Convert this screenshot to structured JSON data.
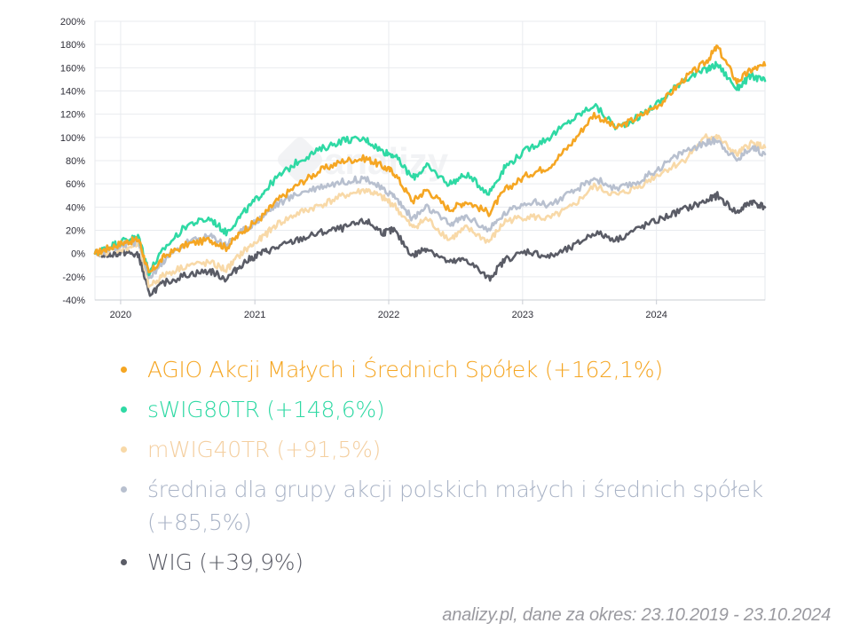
{
  "chart_data": {
    "type": "line",
    "x_range": [
      "2019-10-23",
      "2024-10-23"
    ],
    "x_ticks": [
      "2020",
      "2021",
      "2022",
      "2023",
      "2024"
    ],
    "y_ticks": [
      "200%",
      "180%",
      "160%",
      "140%",
      "120%",
      "100%",
      "80%",
      "60%",
      "40%",
      "20%",
      "0%",
      "-20%",
      "-40%"
    ],
    "ylim": [
      -40,
      200
    ],
    "grid": true,
    "watermark": "analizy",
    "series": [
      {
        "name": "AGIO Akcji Małych i Średnich Spółek",
        "legend_label": "AGIO Akcji Małych i Średnich Spółek (+162,1%)",
        "color": "#f5a623",
        "values": [
          [
            "2019-10-23",
            0
          ],
          [
            "2019-12-01",
            5
          ],
          [
            "2020-01-15",
            10
          ],
          [
            "2020-02-20",
            12
          ],
          [
            "2020-03-18",
            -18
          ],
          [
            "2020-05-01",
            -2
          ],
          [
            "2020-07-01",
            8
          ],
          [
            "2020-09-01",
            12
          ],
          [
            "2020-10-15",
            5
          ],
          [
            "2020-12-01",
            20
          ],
          [
            "2021-01-15",
            30
          ],
          [
            "2021-03-01",
            45
          ],
          [
            "2021-05-01",
            60
          ],
          [
            "2021-07-01",
            72
          ],
          [
            "2021-09-01",
            80
          ],
          [
            "2021-11-01",
            82
          ],
          [
            "2021-12-15",
            75
          ],
          [
            "2022-01-15",
            70
          ],
          [
            "2022-03-07",
            45
          ],
          [
            "2022-04-15",
            55
          ],
          [
            "2022-06-15",
            38
          ],
          [
            "2022-08-01",
            45
          ],
          [
            "2022-10-01",
            35
          ],
          [
            "2022-11-15",
            55
          ],
          [
            "2023-01-15",
            68
          ],
          [
            "2023-03-15",
            75
          ],
          [
            "2023-05-15",
            95
          ],
          [
            "2023-07-15",
            120
          ],
          [
            "2023-09-15",
            108
          ],
          [
            "2023-11-15",
            118
          ],
          [
            "2024-01-15",
            130
          ],
          [
            "2024-03-15",
            150
          ],
          [
            "2024-05-15",
            165
          ],
          [
            "2024-06-15",
            178
          ],
          [
            "2024-08-07",
            148
          ],
          [
            "2024-09-15",
            158
          ],
          [
            "2024-10-23",
            162.1
          ]
        ]
      },
      {
        "name": "sWIG80TR",
        "legend_label": "sWIG80TR (+148,6%)",
        "color": "#2fd9a4",
        "values": [
          [
            "2019-10-23",
            0
          ],
          [
            "2019-12-01",
            6
          ],
          [
            "2020-01-15",
            12
          ],
          [
            "2020-02-20",
            14
          ],
          [
            "2020-03-18",
            -16
          ],
          [
            "2020-05-01",
            5
          ],
          [
            "2020-07-01",
            25
          ],
          [
            "2020-09-01",
            30
          ],
          [
            "2020-10-15",
            18
          ],
          [
            "2020-12-01",
            35
          ],
          [
            "2021-01-15",
            50
          ],
          [
            "2021-03-01",
            65
          ],
          [
            "2021-05-01",
            80
          ],
          [
            "2021-07-01",
            90
          ],
          [
            "2021-09-01",
            98
          ],
          [
            "2021-11-01",
            98
          ],
          [
            "2021-12-15",
            88
          ],
          [
            "2022-01-15",
            85
          ],
          [
            "2022-03-07",
            65
          ],
          [
            "2022-04-15",
            75
          ],
          [
            "2022-06-15",
            60
          ],
          [
            "2022-08-01",
            68
          ],
          [
            "2022-10-01",
            52
          ],
          [
            "2022-11-15",
            75
          ],
          [
            "2023-01-15",
            90
          ],
          [
            "2023-03-15",
            100
          ],
          [
            "2023-05-15",
            115
          ],
          [
            "2023-07-15",
            128
          ],
          [
            "2023-09-15",
            108
          ],
          [
            "2023-11-15",
            118
          ],
          [
            "2024-01-15",
            132
          ],
          [
            "2024-03-15",
            150
          ],
          [
            "2024-05-15",
            158
          ],
          [
            "2024-06-15",
            163
          ],
          [
            "2024-08-07",
            142
          ],
          [
            "2024-09-15",
            153
          ],
          [
            "2024-10-23",
            148.6
          ]
        ]
      },
      {
        "name": "mWIG40TR",
        "legend_label": "mWIG40TR (+91,5%)",
        "color": "#f8d9a8",
        "values": [
          [
            "2019-10-23",
            0
          ],
          [
            "2019-12-01",
            2
          ],
          [
            "2020-01-15",
            5
          ],
          [
            "2020-02-20",
            8
          ],
          [
            "2020-03-18",
            -28
          ],
          [
            "2020-05-01",
            -18
          ],
          [
            "2020-07-01",
            -10
          ],
          [
            "2020-09-01",
            -8
          ],
          [
            "2020-10-15",
            -14
          ],
          [
            "2020-12-01",
            2
          ],
          [
            "2021-01-15",
            12
          ],
          [
            "2021-03-01",
            25
          ],
          [
            "2021-05-01",
            35
          ],
          [
            "2021-07-01",
            42
          ],
          [
            "2021-09-01",
            50
          ],
          [
            "2021-11-01",
            55
          ],
          [
            "2021-12-15",
            48
          ],
          [
            "2022-01-15",
            42
          ],
          [
            "2022-03-07",
            22
          ],
          [
            "2022-04-15",
            30
          ],
          [
            "2022-06-15",
            12
          ],
          [
            "2022-08-01",
            22
          ],
          [
            "2022-10-01",
            10
          ],
          [
            "2022-11-15",
            28
          ],
          [
            "2023-01-15",
            32
          ],
          [
            "2023-03-15",
            30
          ],
          [
            "2023-05-15",
            40
          ],
          [
            "2023-07-15",
            58
          ],
          [
            "2023-09-15",
            50
          ],
          [
            "2023-11-15",
            58
          ],
          [
            "2024-01-15",
            70
          ],
          [
            "2024-03-15",
            80
          ],
          [
            "2024-05-15",
            100
          ],
          [
            "2024-06-15",
            100
          ],
          [
            "2024-08-07",
            85
          ],
          [
            "2024-09-15",
            95
          ],
          [
            "2024-10-23",
            91.5
          ]
        ]
      },
      {
        "name": "średnia dla grupy akcji polskich małych i średnich spółek",
        "legend_label": "średnia dla grupy akcji polskich małych i średnich spółek (+85,5%)",
        "color": "#b8c0cf",
        "values": [
          [
            "2019-10-23",
            0
          ],
          [
            "2019-12-01",
            4
          ],
          [
            "2020-01-15",
            8
          ],
          [
            "2020-02-20",
            10
          ],
          [
            "2020-03-18",
            -22
          ],
          [
            "2020-05-01",
            -5
          ],
          [
            "2020-07-01",
            10
          ],
          [
            "2020-09-01",
            15
          ],
          [
            "2020-10-15",
            8
          ],
          [
            "2020-12-01",
            20
          ],
          [
            "2021-01-15",
            30
          ],
          [
            "2021-03-01",
            42
          ],
          [
            "2021-05-01",
            52
          ],
          [
            "2021-07-01",
            58
          ],
          [
            "2021-09-01",
            62
          ],
          [
            "2021-11-01",
            65
          ],
          [
            "2021-12-15",
            55
          ],
          [
            "2022-01-15",
            50
          ],
          [
            "2022-03-07",
            30
          ],
          [
            "2022-04-15",
            40
          ],
          [
            "2022-06-15",
            25
          ],
          [
            "2022-08-01",
            32
          ],
          [
            "2022-10-01",
            20
          ],
          [
            "2022-11-15",
            35
          ],
          [
            "2023-01-15",
            45
          ],
          [
            "2023-03-15",
            42
          ],
          [
            "2023-05-15",
            52
          ],
          [
            "2023-07-15",
            65
          ],
          [
            "2023-09-15",
            55
          ],
          [
            "2023-11-15",
            62
          ],
          [
            "2024-01-15",
            75
          ],
          [
            "2024-03-15",
            88
          ],
          [
            "2024-05-15",
            95
          ],
          [
            "2024-06-15",
            98
          ],
          [
            "2024-08-07",
            80
          ],
          [
            "2024-09-15",
            92
          ],
          [
            "2024-10-23",
            85.5
          ]
        ]
      },
      {
        "name": "WIG",
        "legend_label": "WIG (+39,9%)",
        "color": "#5a5c66",
        "values": [
          [
            "2019-10-23",
            0
          ],
          [
            "2019-12-01",
            -1
          ],
          [
            "2020-01-15",
            1
          ],
          [
            "2020-02-20",
            -2
          ],
          [
            "2020-03-18",
            -35
          ],
          [
            "2020-05-01",
            -25
          ],
          [
            "2020-07-01",
            -18
          ],
          [
            "2020-09-01",
            -15
          ],
          [
            "2020-10-15",
            -22
          ],
          [
            "2020-12-01",
            -8
          ],
          [
            "2021-01-15",
            0
          ],
          [
            "2021-03-01",
            5
          ],
          [
            "2021-05-01",
            12
          ],
          [
            "2021-07-01",
            18
          ],
          [
            "2021-09-01",
            22
          ],
          [
            "2021-11-01",
            28
          ],
          [
            "2021-12-15",
            18
          ],
          [
            "2022-01-15",
            20
          ],
          [
            "2022-03-07",
            -2
          ],
          [
            "2022-04-15",
            5
          ],
          [
            "2022-06-15",
            -8
          ],
          [
            "2022-08-01",
            -5
          ],
          [
            "2022-10-01",
            -22
          ],
          [
            "2022-11-15",
            -5
          ],
          [
            "2023-01-15",
            2
          ],
          [
            "2023-03-15",
            -3
          ],
          [
            "2023-05-15",
            5
          ],
          [
            "2023-07-15",
            18
          ],
          [
            "2023-09-15",
            12
          ],
          [
            "2023-11-15",
            22
          ],
          [
            "2024-01-15",
            30
          ],
          [
            "2024-03-15",
            38
          ],
          [
            "2024-05-15",
            45
          ],
          [
            "2024-06-15",
            50
          ],
          [
            "2024-08-07",
            35
          ],
          [
            "2024-09-15",
            45
          ],
          [
            "2024-10-23",
            39.9
          ]
        ]
      }
    ]
  },
  "footer": {
    "source": "analizy.pl, dane za okres: 23.10.2019 - 23.10.2024"
  }
}
